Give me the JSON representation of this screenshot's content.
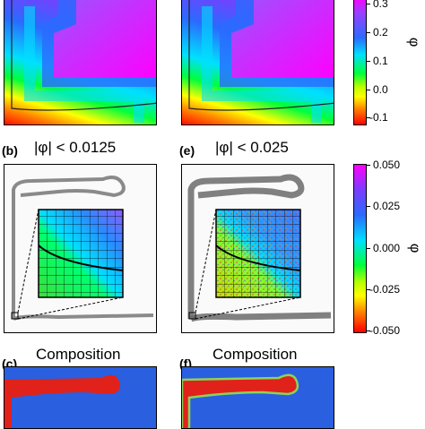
{
  "colorbar_top": {
    "ticks": [
      "0.3",
      "0.2",
      "0.1",
      "0.0",
      "-0.1"
    ],
    "label": "φ"
  },
  "colorbar_mid": {
    "ticks": [
      "0.050",
      "0.025",
      "0.000",
      "-0.025",
      "-0.050"
    ],
    "label": "φ"
  },
  "panels": {
    "b": {
      "label": "(b)",
      "title": "|φ| < 0.0125"
    },
    "e": {
      "label": "(e)",
      "title": "|φ| < 0.025"
    },
    "c": {
      "label": "(c)",
      "title": "Composition"
    },
    "f": {
      "label": "(f)",
      "title": "Composition"
    }
  },
  "colors": {
    "spectrum": [
      "#ff00ff",
      "#7a3dff",
      "#2a6bff",
      "#00e0ff",
      "#00ff3a",
      "#b5ff00",
      "#ffff00",
      "#ff8000",
      "#ff0000"
    ],
    "composition_blue": "#2a5fe0",
    "composition_red": "#e0221a",
    "interface_green": "#8cd25a"
  }
}
